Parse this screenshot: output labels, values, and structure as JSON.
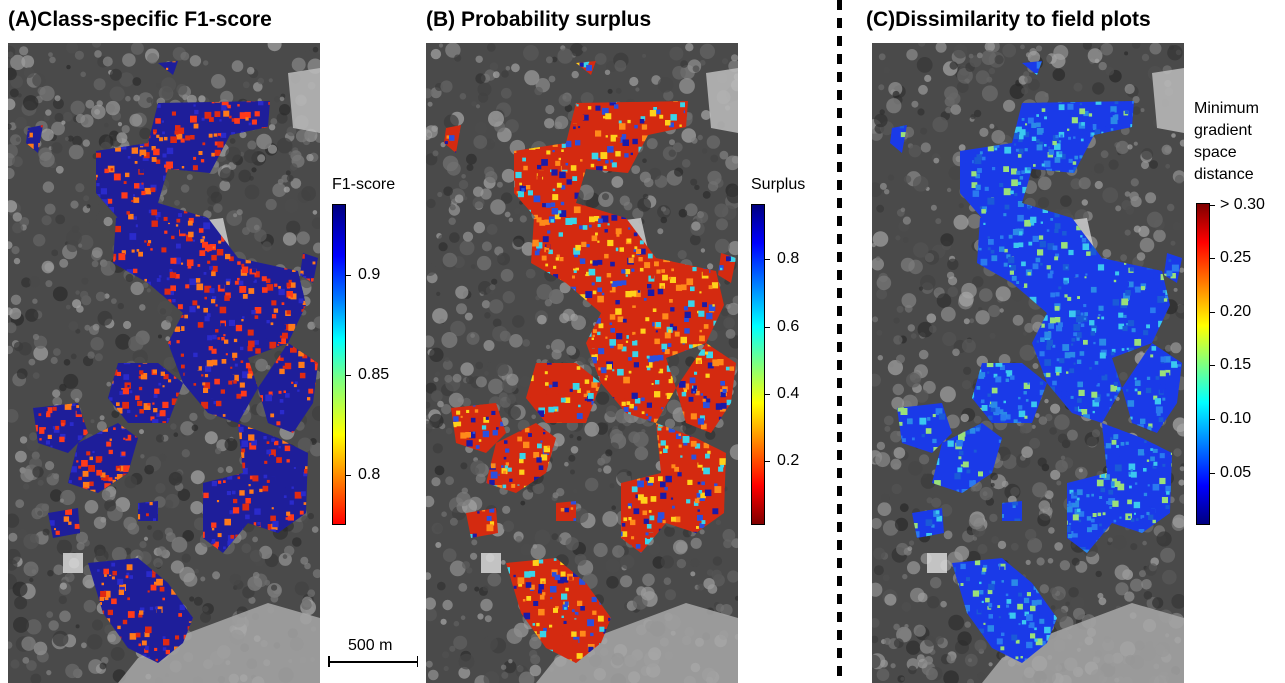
{
  "panels": [
    {
      "title": "(A)Class-specific F1-score",
      "colorbar_label": "F1-score",
      "ticks": [
        "0.9",
        "0.85",
        "0.8"
      ],
      "palette": [
        "#1e1e9a",
        "#2a2acc",
        "#ff3a1a",
        "#ff7a1a",
        "#e02a12"
      ]
    },
    {
      "title": "(B) Probability surplus",
      "colorbar_label": "Surplus",
      "ticks": [
        "0.8",
        "0.6",
        "0.4",
        "0.2"
      ],
      "palette": [
        "#d42a10",
        "#ff8a1a",
        "#ffd21a",
        "#3ad4e8",
        "#2a50e0",
        "#1a1aa8"
      ]
    },
    {
      "title": "(C)Dissimilarity to field plots",
      "colorbar_label": "Minimum gradient space distance",
      "colorbar_label_lines": [
        "Minimum",
        "gradient",
        "space",
        "distance"
      ],
      "ticks": [
        "> 0.30",
        "0.25",
        "0.20",
        "0.15",
        "0.10",
        "0.05"
      ],
      "palette": [
        "#1a3ae8",
        "#2a7af0",
        "#3ac8f0",
        "#9ae07a",
        "#1a5ad8",
        "#2a8ae8"
      ]
    }
  ],
  "scalebar": {
    "label": "500 m"
  },
  "colors": {
    "jet": [
      "#7f0000",
      "#ff0000",
      "#ff7f00",
      "#ffff00",
      "#7fff7f",
      "#00ffff",
      "#007fff",
      "#0000ff",
      "#00007f"
    ]
  }
}
